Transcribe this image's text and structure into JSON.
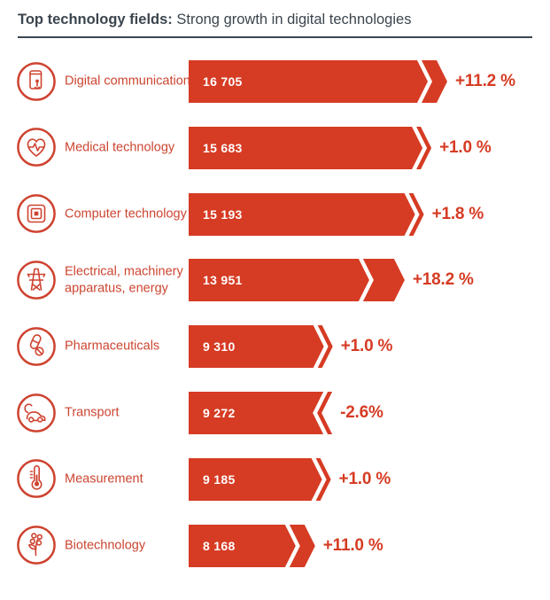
{
  "title": {
    "bold": "Top technology fields:",
    "rest": " Strong growth in digital technologies"
  },
  "colors": {
    "red": "#d63b23",
    "icon_red": "#ce4330",
    "label_red": "#cc4531",
    "title_dark": "#3b454e",
    "bar_text": "#ffffff",
    "background": "#ffffff"
  },
  "chart_data": {
    "type": "bar",
    "orientation": "horizontal",
    "title": "Top technology fields: Strong growth in digital technologies",
    "legend": "none",
    "grid": "off",
    "value_range": [
      0,
      16705
    ],
    "categories": [
      "Digital communication",
      "Medical technology",
      "Computer technology",
      "Electrical, machinery apparatus, energy",
      "Pharmaceuticals",
      "Transport",
      "Measurement",
      "Biotechnology"
    ],
    "values": [
      16705,
      15683,
      15193,
      13951,
      9310,
      9272,
      9185,
      8168
    ],
    "growth_pct": [
      11.2,
      1.0,
      1.8,
      18.2,
      1.0,
      -2.6,
      1.0,
      11.0
    ],
    "rows": [
      {
        "label": "Digital communication",
        "value": 16705,
        "value_label": "16 705",
        "growth": 11.2,
        "growth_label": "+11.2 %",
        "icon": "smartphone-tap-icon"
      },
      {
        "label": "Medical technology",
        "value": 15683,
        "value_label": "15 683",
        "growth": 1.0,
        "growth_label": "+1.0 %",
        "icon": "heart-pulse-icon"
      },
      {
        "label": "Computer technology",
        "value": 15193,
        "value_label": "15 193",
        "growth": 1.8,
        "growth_label": "+1.8 %",
        "icon": "chip-icon"
      },
      {
        "label": "Electrical, machinery apparatus, energy",
        "value": 13951,
        "value_label": "13 951",
        "growth": 18.2,
        "growth_label": "+18.2 %",
        "icon": "pylon-icon"
      },
      {
        "label": "Pharmaceuticals",
        "value": 9310,
        "value_label": "9 310",
        "growth": 1.0,
        "growth_label": "+1.0 %",
        "icon": "pills-icon"
      },
      {
        "label": "Transport",
        "value": 9272,
        "value_label": "9 272",
        "growth": -2.6,
        "growth_label": "-2.6%",
        "icon": "car-icon"
      },
      {
        "label": "Measurement",
        "value": 9185,
        "value_label": "9 185",
        "growth": 1.0,
        "growth_label": "+1.0 %",
        "icon": "thermometer-icon"
      },
      {
        "label": "Biotechnology",
        "value": 8168,
        "value_label": "8 168",
        "growth": 11.0,
        "growth_label": "+11.0 %",
        "icon": "plant-molecule-icon"
      }
    ]
  }
}
